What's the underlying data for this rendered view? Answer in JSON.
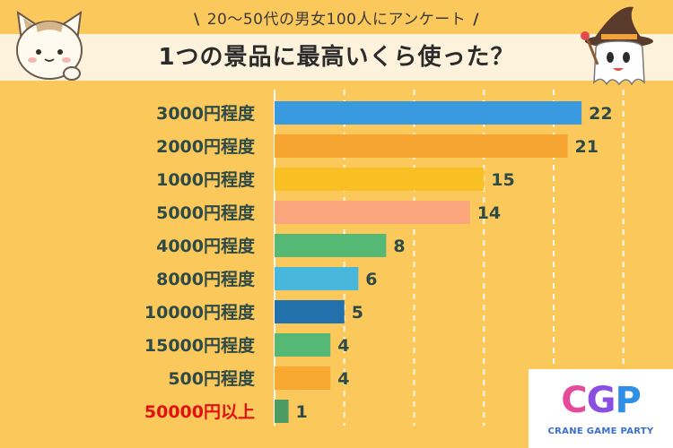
{
  "header": {
    "subtitle": "20〜50代の男女100人にアンケート",
    "subtitle_slash_left": "\\",
    "subtitle_slash_right": "/",
    "title": "1つの景品に最高いくら使った？"
  },
  "logo": {
    "letter_c": "C",
    "letter_g": "G",
    "letter_p": "P",
    "text": "CRANE GAME PARTY"
  },
  "mascots": {
    "left": "cat-mascot",
    "right": "ghost-witch-mascot"
  },
  "chart_data": {
    "type": "bar",
    "orientation": "horizontal",
    "title": "1つの景品に最高いくら使った？",
    "subtitle": "20〜50代の男女100人にアンケート",
    "categories": [
      "3000円程度",
      "2000円程度",
      "1000円程度",
      "5000円程度",
      "4000円程度",
      "8000円程度",
      "10000円程度",
      "15000円程度",
      "500円程度",
      "50000円以上"
    ],
    "values": [
      22,
      21,
      15,
      14,
      8,
      6,
      5,
      4,
      4,
      1
    ],
    "colors": [
      "#3a9ae0",
      "#f6a531",
      "#fbbf26",
      "#fba57c",
      "#55b975",
      "#49b7dc",
      "#2271ad",
      "#55b975",
      "#f8a932",
      "#4e9a65"
    ],
    "highlight_category": "50000円以上",
    "highlight_color": "#e21010",
    "xlim": [
      0,
      25
    ],
    "grid": true
  }
}
